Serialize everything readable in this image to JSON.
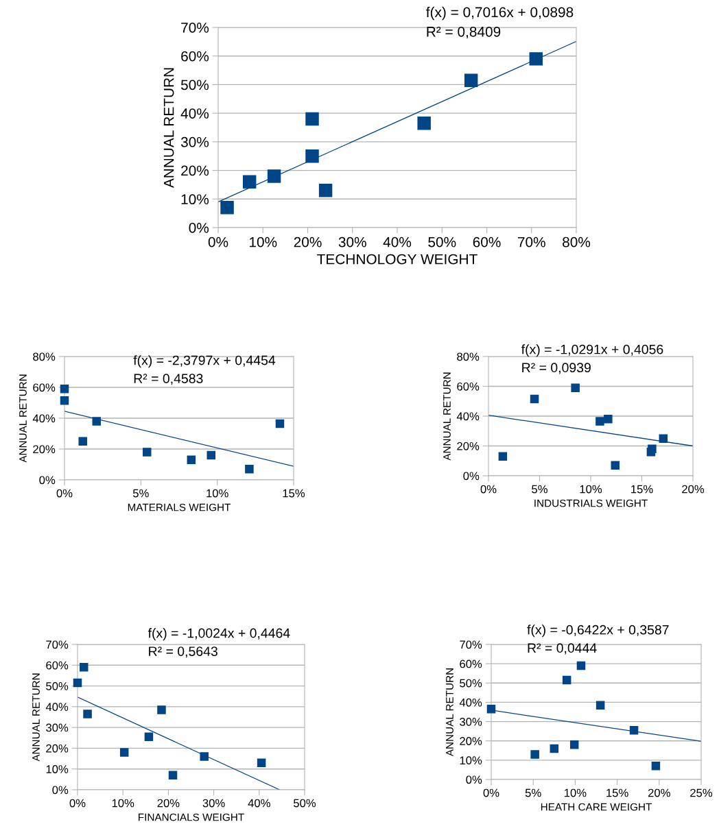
{
  "chart_data": [
    {
      "type": "scatter",
      "xlabel": "TECHNOLOGY WEIGHT",
      "ylabel": "ANNUAL RETURN",
      "marker": "square",
      "grid": "y",
      "annotations": [
        "f(x) = 0,7016x + 0,0898",
        "R² = 0,8409"
      ],
      "xlim": [
        0,
        80
      ],
      "ylim": [
        0,
        70
      ],
      "xticks": [
        {
          "value": 0,
          "label": "0%"
        },
        {
          "value": 10,
          "label": "10%"
        },
        {
          "value": 20,
          "label": "20%"
        },
        {
          "value": 30,
          "label": "30%"
        },
        {
          "value": 40,
          "label": "40%"
        },
        {
          "value": 50,
          "label": "50%"
        },
        {
          "value": 60,
          "label": "60%"
        },
        {
          "value": 70,
          "label": "70%"
        },
        {
          "value": 80,
          "label": "80%"
        }
      ],
      "yticks": [
        {
          "value": 0,
          "label": "0%"
        },
        {
          "value": 10,
          "label": "10%"
        },
        {
          "value": 20,
          "label": "20%"
        },
        {
          "value": 30,
          "label": "30%"
        },
        {
          "value": 40,
          "label": "40%"
        },
        {
          "value": 50,
          "label": "50%"
        },
        {
          "value": 60,
          "label": "60%"
        },
        {
          "value": 70,
          "label": "70%"
        }
      ],
      "series": [
        {
          "color": "#004586",
          "x": [
            2,
            7,
            12.5,
            21,
            21,
            24,
            46,
            56.5,
            71
          ],
          "values": [
            7,
            16,
            18,
            38,
            25,
            13,
            36.5,
            51.5,
            59
          ]
        },
        {
          "type": "line",
          "color": "#004586",
          "marker": "none",
          "x": [
            0,
            80
          ],
          "values": [
            9.0,
            65.1
          ]
        }
      ]
    },
    {
      "type": "scatter",
      "xlabel": "MATERIALS WEIGHT",
      "ylabel": "ANNUAL RETURN",
      "marker": "square",
      "grid": "y",
      "annotations": [
        "f(x) = -2,3797x + 0,4454",
        "R² = 0,4583"
      ],
      "xlim": [
        0,
        15
      ],
      "ylim": [
        0,
        80
      ],
      "xticks": [
        {
          "value": 0,
          "label": "0%"
        },
        {
          "value": 5,
          "label": "5%"
        },
        {
          "value": 10,
          "label": "10%"
        },
        {
          "value": 15,
          "label": "15%"
        }
      ],
      "yticks": [
        {
          "value": 0,
          "label": "0%"
        },
        {
          "value": 20,
          "label": "20%"
        },
        {
          "value": 40,
          "label": "40%"
        },
        {
          "value": 60,
          "label": "60%"
        },
        {
          "value": 80,
          "label": "80%"
        }
      ],
      "series": [
        {
          "color": "#004586",
          "x": [
            0,
            0,
            1.2,
            2.1,
            5.4,
            8.3,
            9.6,
            12.1,
            14.1
          ],
          "values": [
            59,
            51.5,
            25,
            38,
            18,
            13,
            16,
            7,
            36.5
          ]
        },
        {
          "type": "line",
          "color": "#004586",
          "marker": "none",
          "x": [
            0,
            15
          ],
          "values": [
            44.5,
            8.8
          ]
        }
      ]
    },
    {
      "type": "scatter",
      "xlabel": "INDUSTRIALS WEIGHT",
      "ylabel": "ANNUAL RETURN",
      "marker": "square",
      "grid": "y",
      "annotations": [
        "f(x) = -1,0291x + 0,4056",
        "R² = 0,0939"
      ],
      "xlim": [
        0,
        20
      ],
      "ylim": [
        0,
        80
      ],
      "xticks": [
        {
          "value": 0,
          "label": "0%"
        },
        {
          "value": 5,
          "label": "5%"
        },
        {
          "value": 10,
          "label": "10%"
        },
        {
          "value": 15,
          "label": "15%"
        },
        {
          "value": 20,
          "label": "20%"
        }
      ],
      "yticks": [
        {
          "value": 0,
          "label": "0%"
        },
        {
          "value": 20,
          "label": "20%"
        },
        {
          "value": 40,
          "label": "40%"
        },
        {
          "value": 60,
          "label": "60%"
        },
        {
          "value": 80,
          "label": "80%"
        }
      ],
      "series": [
        {
          "color": "#004586",
          "x": [
            1.4,
            4.5,
            8.5,
            10.9,
            11.7,
            12.4,
            15.9,
            16.0,
            17.1
          ],
          "values": [
            13,
            51.5,
            59,
            36.5,
            38,
            7,
            16,
            18,
            25
          ]
        },
        {
          "type": "line",
          "color": "#004586",
          "marker": "none",
          "x": [
            0,
            20
          ],
          "values": [
            40.6,
            20.0
          ]
        }
      ]
    },
    {
      "type": "scatter",
      "xlabel": "FINANCIALS WEIGHT",
      "ylabel": "ANNUAL RETURN",
      "marker": "square",
      "grid": "y",
      "annotations": [
        "f(x) = -1,0024x + 0,4464",
        "R² = 0,5643"
      ],
      "xlim": [
        0,
        50
      ],
      "ylim": [
        0,
        70
      ],
      "xticks": [
        {
          "value": 0,
          "label": "0%"
        },
        {
          "value": 10,
          "label": "10%"
        },
        {
          "value": 20,
          "label": "20%"
        },
        {
          "value": 30,
          "label": "30%"
        },
        {
          "value": 40,
          "label": "40%"
        },
        {
          "value": 50,
          "label": "50%"
        }
      ],
      "yticks": [
        {
          "value": 0,
          "label": "0%"
        },
        {
          "value": 10,
          "label": "10%"
        },
        {
          "value": 20,
          "label": "20%"
        },
        {
          "value": 30,
          "label": "30%"
        },
        {
          "value": 40,
          "label": "40%"
        },
        {
          "value": 50,
          "label": "50%"
        },
        {
          "value": 60,
          "label": "60%"
        },
        {
          "value": 70,
          "label": "70%"
        }
      ],
      "series": [
        {
          "color": "#004586",
          "x": [
            0,
            1.4,
            2.2,
            10.3,
            15.7,
            18.5,
            21,
            27.9,
            40.5
          ],
          "values": [
            51.5,
            59,
            36.5,
            18,
            25.5,
            38.5,
            7,
            16,
            13
          ]
        },
        {
          "type": "line",
          "color": "#004586",
          "marker": "none",
          "x": [
            0,
            44.5
          ],
          "values": [
            44.6,
            0
          ]
        }
      ]
    },
    {
      "type": "scatter",
      "xlabel": "HEATH CARE WEIGHT",
      "ylabel": "ANNUAL RETURN",
      "marker": "square",
      "grid": "y",
      "annotations": [
        "f(x) = -0,6422x + 0,3587",
        "R² = 0,0444"
      ],
      "xlim": [
        0,
        25
      ],
      "ylim": [
        0,
        70
      ],
      "xticks": [
        {
          "value": 0,
          "label": "0%"
        },
        {
          "value": 5,
          "label": "5%"
        },
        {
          "value": 10,
          "label": "10%"
        },
        {
          "value": 15,
          "label": "15%"
        },
        {
          "value": 20,
          "label": "20%"
        },
        {
          "value": 25,
          "label": "25%"
        }
      ],
      "yticks": [
        {
          "value": 0,
          "label": "0%"
        },
        {
          "value": 10,
          "label": "10%"
        },
        {
          "value": 20,
          "label": "20%"
        },
        {
          "value": 30,
          "label": "30%"
        },
        {
          "value": 40,
          "label": "40%"
        },
        {
          "value": 50,
          "label": "50%"
        },
        {
          "value": 60,
          "label": "60%"
        },
        {
          "value": 70,
          "label": "70%"
        }
      ],
      "series": [
        {
          "color": "#004586",
          "x": [
            0,
            5.2,
            7.5,
            9.9,
            9.0,
            10.7,
            13,
            17,
            19.6
          ],
          "values": [
            36.5,
            13,
            16,
            18,
            51.5,
            59,
            38.5,
            25.5,
            7
          ]
        },
        {
          "type": "line",
          "color": "#004586",
          "marker": "none",
          "x": [
            0,
            25
          ],
          "values": [
            35.9,
            19.8
          ]
        }
      ]
    }
  ]
}
